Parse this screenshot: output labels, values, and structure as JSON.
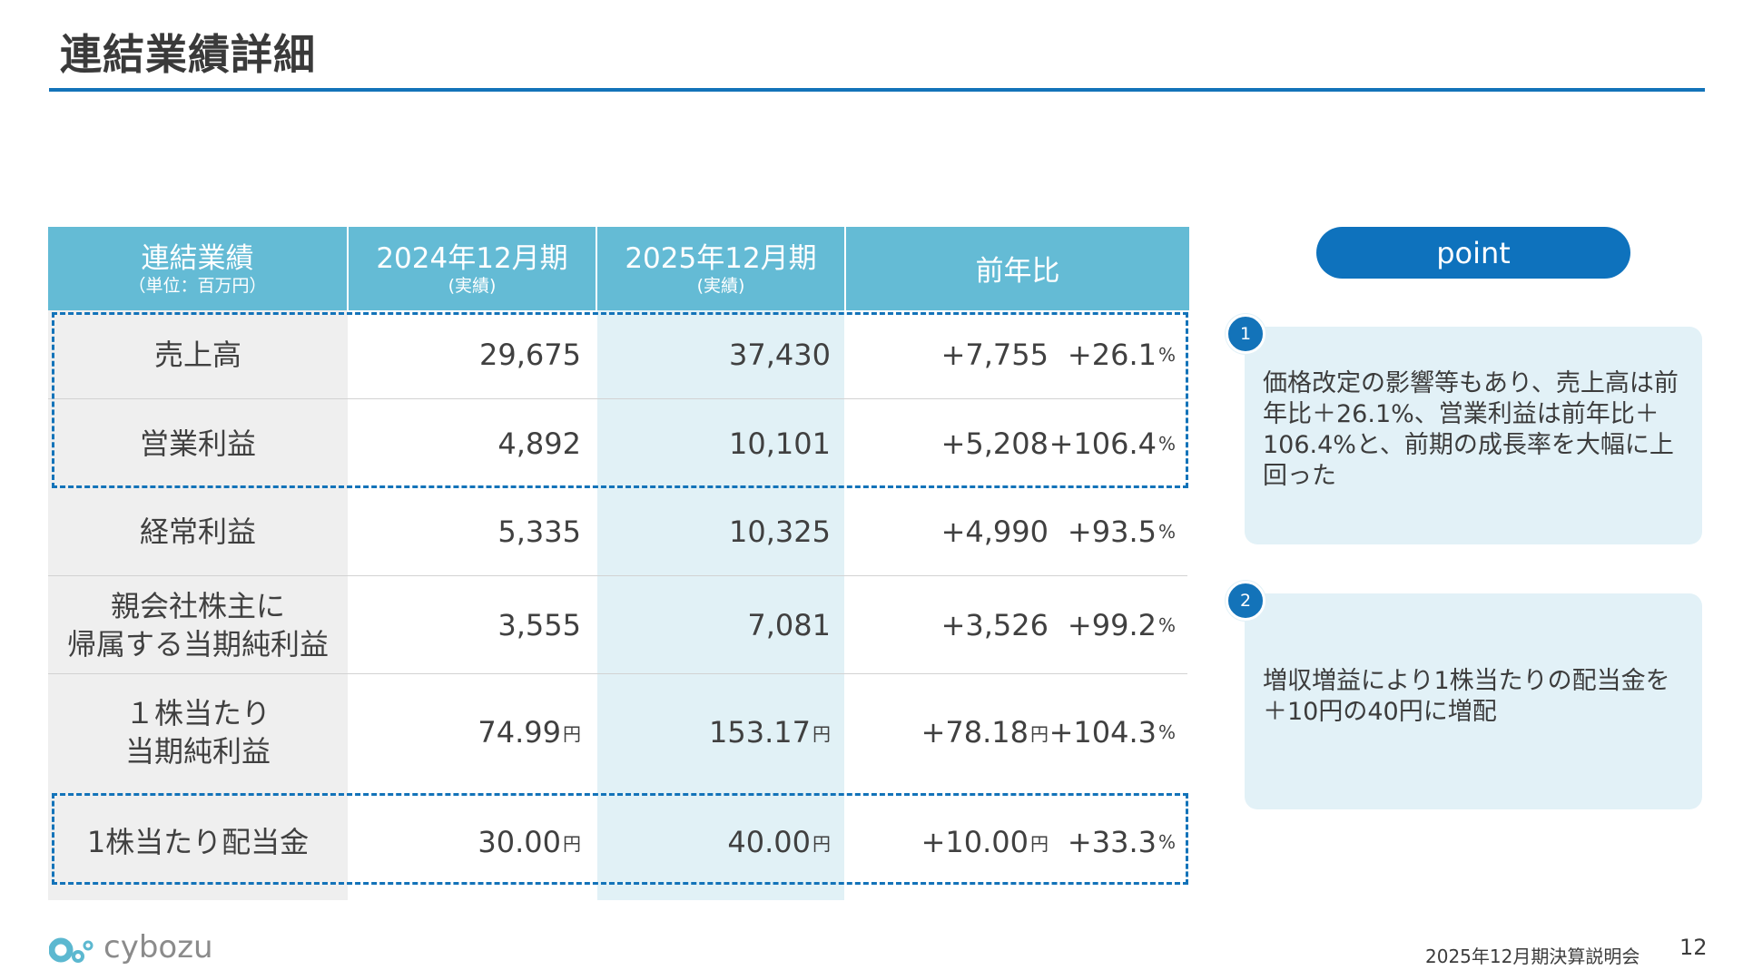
{
  "page": {
    "title": "連結業績詳細",
    "accent_color": "#1373b9",
    "header_color": "#64bbd5"
  },
  "table": {
    "headers": [
      {
        "main": "連結業績",
        "sub": "（単位：百万円）"
      },
      {
        "main": "2024年12月期",
        "sub": "(実績)"
      },
      {
        "main": "2025年12月期",
        "sub": "(実績)"
      },
      {
        "main": "前年比",
        "sub": ""
      }
    ],
    "rows": [
      {
        "label_lines": [
          "売上高"
        ],
        "v2024": "29,675",
        "v2025": "37,430",
        "diff": "+7,755",
        "pct": "+26.1",
        "pct_unit": "%",
        "unit": ""
      },
      {
        "label_lines": [
          "営業利益"
        ],
        "v2024": "4,892",
        "v2025": "10,101",
        "diff": "+5,208",
        "pct": "+106.4",
        "pct_unit": "%",
        "unit": ""
      },
      {
        "label_lines": [
          "経常利益"
        ],
        "v2024": "5,335",
        "v2025": "10,325",
        "diff": "+4,990",
        "pct": "+93.5",
        "pct_unit": "%",
        "unit": ""
      },
      {
        "label_lines": [
          "親会社株主に",
          "帰属する当期純利益"
        ],
        "v2024": "3,555",
        "v2025": "7,081",
        "diff": "+3,526",
        "pct": "+99.2",
        "pct_unit": "%",
        "unit": ""
      },
      {
        "label_lines": [
          "１株当たり",
          "当期純利益"
        ],
        "v2024": "74.99",
        "v2025": "153.17",
        "diff": "+78.18",
        "pct": "+104.3",
        "pct_unit": "%",
        "unit": "円"
      },
      {
        "label_lines": [
          "1株当たり配当金"
        ],
        "v2024": "30.00",
        "v2025": "40.00",
        "diff": "+10.00",
        "pct": "+33.3",
        "pct_unit": "%",
        "unit": "円"
      }
    ]
  },
  "points": {
    "heading": "point",
    "items": [
      {
        "number": "1",
        "text": "価格改定の影響等もあり、売上高は前年比＋26.1%、営業利益は前年比＋106.4%と、前期の成長率を大幅に上回った"
      },
      {
        "number": "2",
        "text": "増収増益により1株当たりの配当金を＋10円の40円に増配"
      }
    ]
  },
  "footer": {
    "logo_text": "cybozu",
    "caption": "2025年12月期決算説明会",
    "page_number": "12"
  }
}
